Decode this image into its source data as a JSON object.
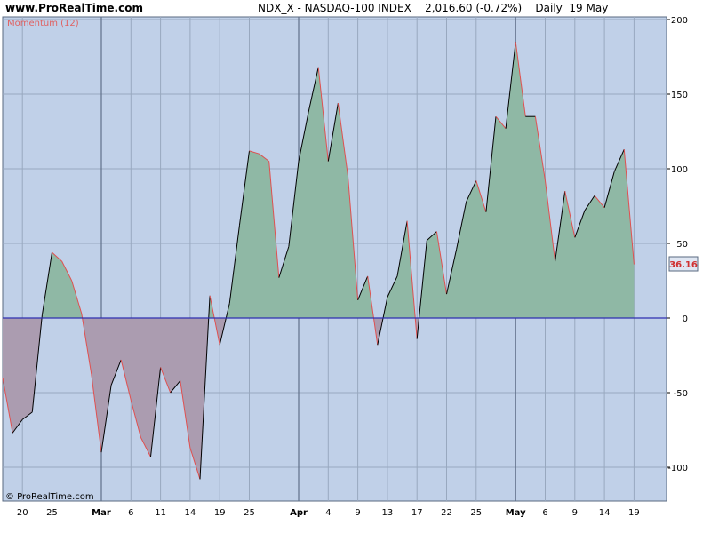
{
  "header": {
    "site": "www.ProRealTime.com",
    "info": "NDX_X - NASDAQ-100 INDEX    2,016.60 (-0.72%)    Daily  19 May"
  },
  "chart_data": {
    "type": "area",
    "indicator_label": "Momentum (12)",
    "copyright": "© ProRealTime.com",
    "last_value_label": "36.16",
    "ylim": [
      -110,
      200
    ],
    "y_ticks": [
      200,
      150,
      100,
      50,
      0,
      -50,
      -100
    ],
    "baseline": 0,
    "x_ticks": [
      {
        "label": "20",
        "bold": false
      },
      {
        "label": "25",
        "bold": false
      },
      {
        "label": "Mar",
        "bold": true
      },
      {
        "label": "6",
        "bold": false
      },
      {
        "label": "11",
        "bold": false
      },
      {
        "label": "14",
        "bold": false
      },
      {
        "label": "19",
        "bold": false
      },
      {
        "label": "25",
        "bold": false
      },
      {
        "label": "Apr",
        "bold": true
      },
      {
        "label": "4",
        "bold": false
      },
      {
        "label": "9",
        "bold": false
      },
      {
        "label": "13",
        "bold": false
      },
      {
        "label": "17",
        "bold": false
      },
      {
        "label": "22",
        "bold": false
      },
      {
        "label": "25",
        "bold": false
      },
      {
        "label": "May",
        "bold": true
      },
      {
        "label": "6",
        "bold": false
      },
      {
        "label": "9",
        "bold": false
      },
      {
        "label": "14",
        "bold": false
      },
      {
        "label": "19",
        "bold": false
      }
    ],
    "month_separators": [
      "Mar",
      "Apr",
      "May"
    ],
    "values": [
      -40,
      -77,
      -68,
      -63,
      2,
      44,
      38,
      25,
      3,
      -38,
      -90,
      -45,
      -28,
      -55,
      -80,
      -93,
      -33,
      -50,
      -42,
      -87,
      -108,
      15,
      -18,
      10,
      62,
      112,
      110,
      105,
      27,
      48,
      105,
      138,
      168,
      105,
      144,
      95,
      12,
      28,
      -18,
      14,
      28,
      65,
      -14,
      52,
      58,
      16,
      46,
      78,
      92,
      71,
      135,
      127,
      185,
      135,
      135,
      92,
      38,
      85,
      54,
      72,
      82,
      74,
      98,
      113,
      36
    ],
    "colors": {
      "background": "#c0d0e8",
      "positive_fill": "#8fb8a5",
      "negative_fill": "#ab9cb0",
      "zero_line": "#2f2fb0",
      "grid": "#98a8bf",
      "month_line": "#60708a",
      "up_segment": "#000000",
      "down_segment": "#e05050"
    }
  }
}
